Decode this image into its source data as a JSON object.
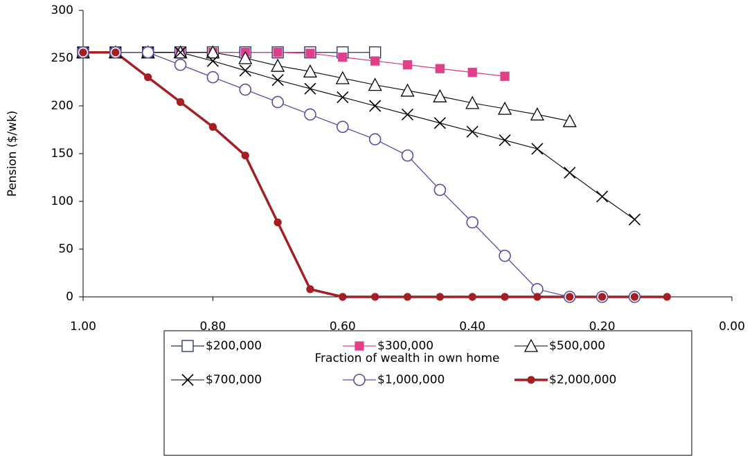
{
  "chart_data": {
    "type": "line",
    "y_label": "Pension ($/wk)",
    "x_label": "Fraction of wealth in own home",
    "x": [
      1.0,
      0.95,
      0.9,
      0.85,
      0.8,
      0.75,
      0.7,
      0.65,
      0.6,
      0.55,
      0.5,
      0.45,
      0.4,
      0.35,
      0.3,
      0.25,
      0.2,
      0.15,
      0.1
    ],
    "xlim": [
      1.0,
      0.0
    ],
    "xticks": [
      {
        "value": 1.0,
        "label": "1.00"
      },
      {
        "value": 0.8,
        "label": "0.80"
      },
      {
        "value": 0.6,
        "label": "0.60"
      },
      {
        "value": 0.4,
        "label": "0.40"
      },
      {
        "value": 0.2,
        "label": "0.20"
      },
      {
        "value": 0.0,
        "label": "0.00"
      }
    ],
    "ylim": [
      0,
      300
    ],
    "yticks": [
      0,
      50,
      100,
      150,
      200,
      250,
      300
    ],
    "series": [
      {
        "name": "$200,000",
        "color": "#1f2a7a",
        "marker": "square-open",
        "line_width": 1.3,
        "values": [
          256,
          256,
          256,
          256,
          256,
          256,
          256,
          256,
          256,
          256,
          null,
          null,
          null,
          null,
          null,
          null,
          null,
          null,
          null
        ]
      },
      {
        "name": "$300,000",
        "color": "#e0408a",
        "marker": "square-filled",
        "line_width": 1.3,
        "values": [
          256,
          256,
          256,
          256,
          256,
          256,
          256,
          255,
          251,
          247,
          243,
          239,
          235,
          231,
          null,
          null,
          null,
          null,
          null
        ]
      },
      {
        "name": "$500,000",
        "color": "#000000",
        "marker": "triangle-open",
        "line_width": 1.1,
        "values": [
          256,
          256,
          256,
          256,
          256,
          250,
          242,
          236,
          229,
          222,
          216,
          210,
          203,
          197,
          191,
          184,
          null,
          null,
          null
        ]
      },
      {
        "name": "$700,000",
        "color": "#000000",
        "marker": "cross",
        "line_width": 1.1,
        "values": [
          256,
          256,
          256,
          256,
          247,
          237,
          227,
          218,
          209,
          200,
          191,
          182,
          173,
          164,
          155,
          130,
          105,
          81,
          null
        ]
      },
      {
        "name": "$1,000,000",
        "color": "#5b4a9e",
        "marker": "circle-open",
        "line_width": 1.3,
        "values": [
          256,
          256,
          256,
          243,
          230,
          217,
          204,
          191,
          178,
          165,
          148,
          112,
          78,
          43,
          8,
          0,
          0,
          0,
          null
        ]
      },
      {
        "name": "$2,000,000",
        "color": "#a31f24",
        "marker": "circle-filled",
        "line_width": 3.5,
        "values": [
          256,
          256,
          230,
          204,
          178,
          148,
          78,
          8,
          0,
          0,
          0,
          0,
          0,
          0,
          0,
          0,
          0,
          0,
          0
        ]
      }
    ]
  }
}
